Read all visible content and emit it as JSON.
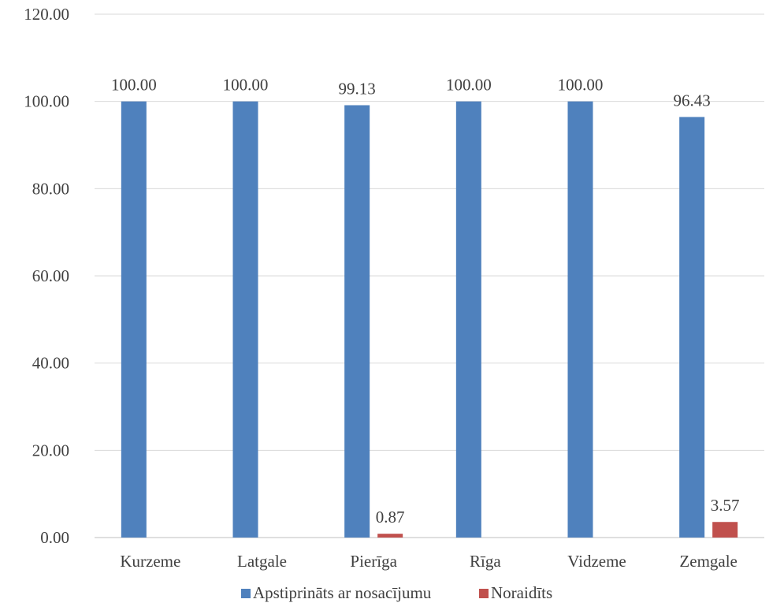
{
  "chart_data": {
    "type": "bar",
    "categories": [
      "Kurzeme",
      "Latgale",
      "Pierīga",
      "Rīga",
      "Vidzeme",
      "Zemgale"
    ],
    "series": [
      {
        "name": "Apstiprināts ar nosacījumu",
        "color": "#4F81BD",
        "values": [
          100.0,
          100.0,
          99.13,
          100.0,
          100.0,
          96.43
        ],
        "labels": [
          "100.00",
          "100.00",
          "99.13",
          "100.00",
          "100.00",
          "96.43"
        ]
      },
      {
        "name": "Noraidīts",
        "color": "#C0504D",
        "values": [
          0,
          0,
          0.87,
          0,
          0,
          3.57
        ],
        "labels": [
          "",
          "",
          "0.87",
          "",
          "",
          "3.57"
        ]
      }
    ],
    "ylim": [
      0,
      120
    ],
    "yticks": [
      "0.00",
      "20.00",
      "40.00",
      "60.00",
      "80.00",
      "100.00",
      "120.00"
    ],
    "grid": true,
    "legend_position": "bottom"
  }
}
